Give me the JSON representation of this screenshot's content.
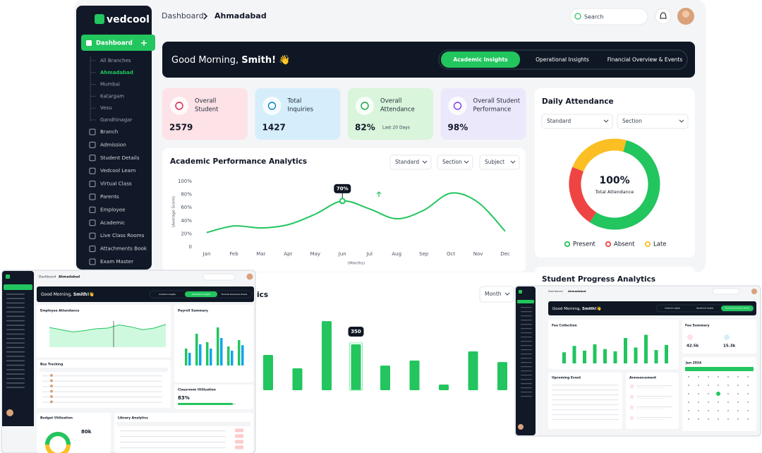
{
  "sidebar": {
    "logo": "vedcool",
    "active": "Dashboard",
    "branches": [
      "All Branches",
      "Ahmadabad",
      "Mumbai",
      "Katargam",
      "Vesu",
      "Gandhinagar"
    ],
    "menu": [
      "Branch",
      "Admission",
      "Student Details",
      "Vedcool Learn",
      "Virtual Class",
      "Parents",
      "Employee",
      "Academic",
      "Live Class Rooms",
      "Attachments Book",
      "Exam Master"
    ]
  },
  "header": {
    "breadcrumb": [
      "Dashboard",
      "Ahmadabad"
    ],
    "search": "Search"
  },
  "banner": {
    "greeting": "Good Morning, ",
    "name": "Smith!",
    "wave": "👋",
    "tabs": [
      "Academic Insights",
      "Operational Insights",
      "Financial Overview & Events"
    ]
  },
  "cards": [
    {
      "label": [
        "Overall",
        "Student"
      ],
      "value": "2579"
    },
    {
      "label": [
        "Total",
        "Inquiries"
      ],
      "value": "1427"
    },
    {
      "label": [
        "Overall",
        "Attendance"
      ],
      "value": "82%",
      "note": "Last 20 Days"
    },
    {
      "label": [
        "Overall Student",
        "Performance"
      ],
      "value": "98%"
    }
  ],
  "academic_chart": {
    "type": "line",
    "title": "Academic Performance Analytics",
    "filters": [
      "Standard",
      "Section",
      "Subject"
    ],
    "y_label": "(Average Score)",
    "x_label": "(Months)",
    "categories": [
      "Jan",
      "Feb",
      "Mar",
      "Apr",
      "May",
      "Jun",
      "Jul",
      "Aug",
      "Sep",
      "Oct",
      "Nov",
      "Dec"
    ],
    "values": [
      22,
      32,
      29,
      34,
      50,
      70,
      58,
      43,
      56,
      82,
      68,
      24
    ],
    "value_labels": [
      null,
      null,
      null,
      null,
      null,
      "70%",
      null,
      null,
      null,
      null,
      null,
      null
    ],
    "ylim": [
      0,
      100
    ],
    "yticks": [
      0,
      {
        "value": 20,
        "label": "20%"
      },
      {
        "value": 40,
        "label": "40%"
      },
      {
        "value": 60,
        "label": "60%"
      },
      {
        "value": 80,
        "label": "80%"
      },
      {
        "value": 100,
        "label": "100%"
      }
    ],
    "color": "#22c55e"
  },
  "attendance_chart": {
    "type": "pie",
    "title": "Daily Attendance",
    "filters": [
      "Standard",
      "Section"
    ],
    "center_value": "100%",
    "center_label": "Total Attendance",
    "categories": [
      "Present",
      "Absent",
      "Late"
    ],
    "values": [
      55,
      22,
      23
    ],
    "colors": [
      "#22c55e",
      "#ef4444",
      "#fbbf24"
    ]
  },
  "student_progress": {
    "title": "Student Progress Analytics"
  },
  "bar_chart": {
    "type": "bar",
    "title": "ics",
    "filter": "Month",
    "values": [
      269,
      167,
      527,
      350,
      188,
      226,
      43,
      296,
      215
    ],
    "value_labels": [
      null,
      null,
      null,
      "350",
      null,
      null,
      null,
      null,
      null
    ],
    "color": "#22c55e"
  },
  "thumb_left": {
    "employee_attendance": {
      "type": "area",
      "title": "Employee Attendance",
      "values": [
        62,
        55,
        48,
        52,
        58,
        60,
        70,
        64,
        55,
        60,
        72
      ],
      "color": "#22c55e"
    },
    "payroll": {
      "type": "bar",
      "title": "Payroll Summary",
      "series": [
        {
          "color": "#22c55e",
          "values": [
            40,
            75,
            55,
            90,
            45,
            60
          ]
        },
        {
          "color": "#0ea5e9",
          "values": [
            30,
            50,
            40,
            65,
            35,
            48
          ]
        }
      ]
    },
    "bus_tracking": {
      "title": "Bus Tracking"
    },
    "classroom": {
      "title": "Classroom Utilization",
      "value": "83%"
    },
    "budget": {
      "title": "Budget Utilization",
      "value": "80k"
    },
    "library": {
      "title": "Library Analytics"
    }
  },
  "thumb_right": {
    "fee_collection": {
      "type": "bar",
      "title": "Fee Collection",
      "values": [
        35,
        55,
        40,
        60,
        45,
        38,
        80,
        50,
        90,
        42,
        58
      ],
      "color": "#22c55e"
    },
    "fee_summary": {
      "title": "Fee Summary",
      "values": [
        "42.5k",
        "15.3k"
      ]
    },
    "upcoming": {
      "title": "Upcoming Event"
    },
    "announcement": {
      "title": "Announcement"
    },
    "calendar": {
      "title": "Jun 2024"
    }
  }
}
